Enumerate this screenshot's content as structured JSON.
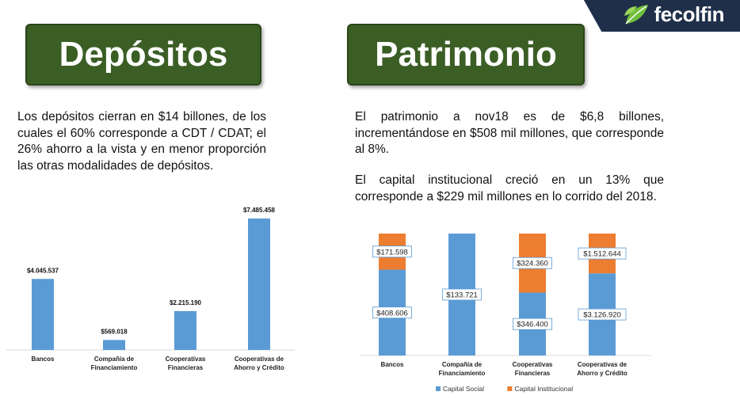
{
  "brand": {
    "name": "fecolfin",
    "logo_icon": "leaf-icon"
  },
  "left": {
    "title": "Depósitos",
    "paragraph": "Los depósitos cierran en $14 billones, de los cuales el 60% corresponde a CDT / CDAT; el 26% ahorro a la vista y en menor proporción las otras modalidades de depósitos."
  },
  "right": {
    "title": "Patrimonio",
    "paragraph1": "El patrimonio a nov18 es de $6,8 billones, incrementándose en $508 mil millones, que corresponde al 8%.",
    "paragraph2": "El capital institucional creció en un 13% que corresponde a $229 mil millones en lo corrido del 2018."
  },
  "chart_data": [
    {
      "type": "bar",
      "categories": [
        "Bancos",
        "Compañía de Financiamiento",
        "Cooperativas Financieras",
        "Cooperativas de Ahorro y Crédito"
      ],
      "category_lines": [
        [
          "Bancos"
        ],
        [
          "Compañía de",
          "Financiamiento"
        ],
        [
          "Cooperativas",
          "Financieras"
        ],
        [
          "Cooperativas de",
          "Ahorro y Crédito"
        ]
      ],
      "values": [
        4045537,
        569018,
        2215190,
        7485458
      ],
      "data_labels": [
        "$4.045.537",
        "$569.018",
        "$2.215.190",
        "$7.485.458"
      ],
      "color": "#5b9bd5",
      "ylim": [
        0,
        7485458
      ],
      "grid": false
    },
    {
      "type": "bar",
      "stacked": true,
      "normalized_percent": true,
      "categories": [
        "Bancos",
        "Compañía de Financiamiento",
        "Cooperativas Financieras",
        "Cooperativas de Ahorro y Crédito"
      ],
      "category_lines": [
        [
          "Bancos"
        ],
        [
          "Compañía de",
          "Financiamiento"
        ],
        [
          "Cooperativas",
          "Financieras"
        ],
        [
          "Cooperativas de",
          "Ahorro y Crédito"
        ]
      ],
      "series": [
        {
          "name": "Capital Social",
          "color": "#5b9bd5",
          "values": [
            408606,
            133721,
            346400,
            3126920
          ],
          "labels": [
            "$408.606",
            "$133.721",
            "$346.400",
            "$3.126.920"
          ]
        },
        {
          "name": "Capital Institucional",
          "color": "#ed7d31",
          "values": [
            171598,
            0,
            324360,
            1512644
          ],
          "labels": [
            "$171.598",
            "",
            "$324.360",
            "$1.512.644"
          ]
        }
      ],
      "legend": "bottom",
      "grid": false
    }
  ]
}
